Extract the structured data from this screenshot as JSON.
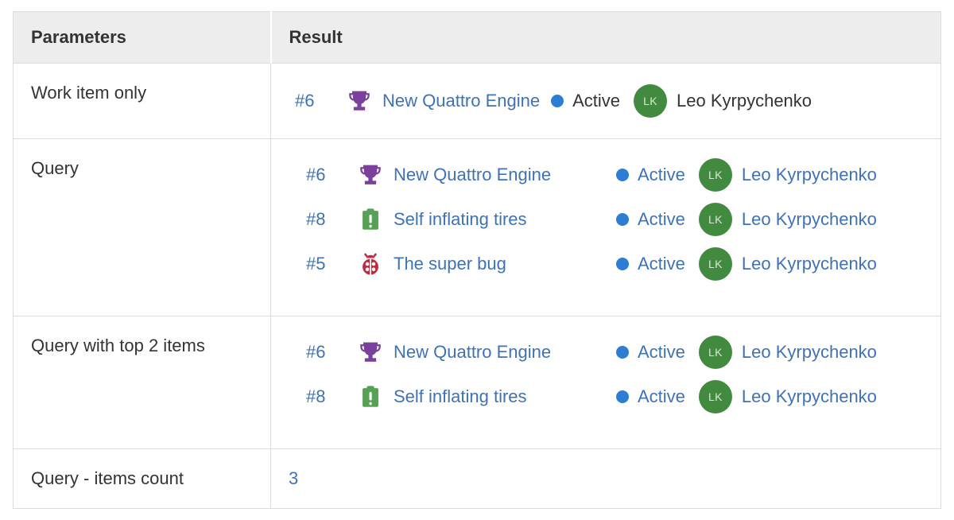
{
  "colors": {
    "text": "#333333",
    "link": "#3e72b7",
    "border": "#dcdcdc",
    "header_bg": "#ededed",
    "state_dot": "#2d7ed3",
    "avatar_bg": "#418a3f",
    "avatar_text": "#d9e8d4",
    "feature_icon": "#7b3f9c",
    "issue_icon": "#56a156",
    "bug_icon": "#c4293d"
  },
  "table": {
    "headers": [
      "Parameters",
      "Result"
    ],
    "rows": [
      {
        "param": "Work item only",
        "type": "work-items",
        "link_style": false,
        "aligned": false,
        "items": [
          {
            "id": "#6",
            "icon": "feature-icon",
            "title": "New Quattro Engine",
            "state": "Active",
            "initials": "LK",
            "assignee": "Leo Kyrpychenko"
          }
        ]
      },
      {
        "param": "Query",
        "type": "work-items",
        "link_style": true,
        "aligned": true,
        "items": [
          {
            "id": "#6",
            "icon": "feature-icon",
            "title": "New Quattro Engine",
            "state": "Active",
            "initials": "LK",
            "assignee": "Leo Kyrpychenko"
          },
          {
            "id": "#8",
            "icon": "issue-icon",
            "title": "Self inflating tires",
            "state": "Active",
            "initials": "LK",
            "assignee": "Leo Kyrpychenko"
          },
          {
            "id": "#5",
            "icon": "bug-icon",
            "title": "The super bug",
            "state": "Active",
            "initials": "LK",
            "assignee": "Leo Kyrpychenko"
          }
        ]
      },
      {
        "param": "Query with top 2 items",
        "type": "work-items",
        "link_style": true,
        "aligned": true,
        "items": [
          {
            "id": "#6",
            "icon": "feature-icon",
            "title": "New Quattro Engine",
            "state": "Active",
            "initials": "LK",
            "assignee": "Leo Kyrpychenko"
          },
          {
            "id": "#8",
            "icon": "issue-icon",
            "title": "Self inflating tires",
            "state": "Active",
            "initials": "LK",
            "assignee": "Leo Kyrpychenko"
          }
        ]
      },
      {
        "param": "Query - items count",
        "type": "count",
        "value": "3"
      }
    ]
  }
}
